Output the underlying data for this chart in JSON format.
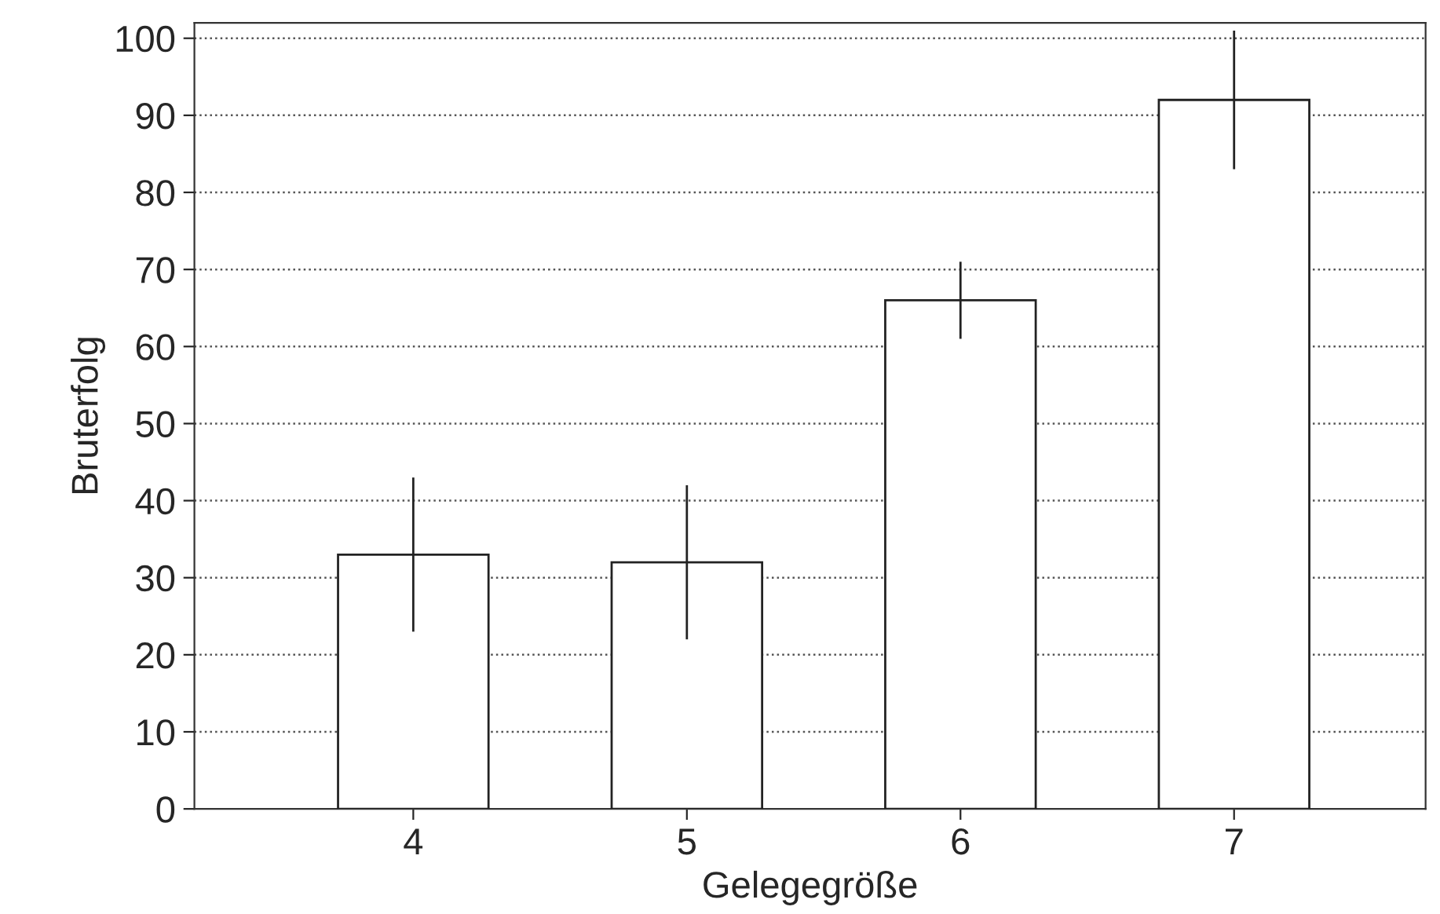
{
  "chart_data": {
    "type": "bar",
    "xlabel": "Gelegegröße",
    "ylabel": "Bruterfolg",
    "categories": [
      "4",
      "5",
      "6",
      "7"
    ],
    "values": [
      33,
      32,
      66,
      92
    ],
    "errors": [
      10,
      10,
      5,
      9
    ],
    "color": "#ffffff",
    "ylim": [
      0,
      102
    ],
    "yticks": [
      0,
      10,
      20,
      30,
      40,
      50,
      60,
      70,
      80,
      90,
      100
    ],
    "grid": "y"
  }
}
